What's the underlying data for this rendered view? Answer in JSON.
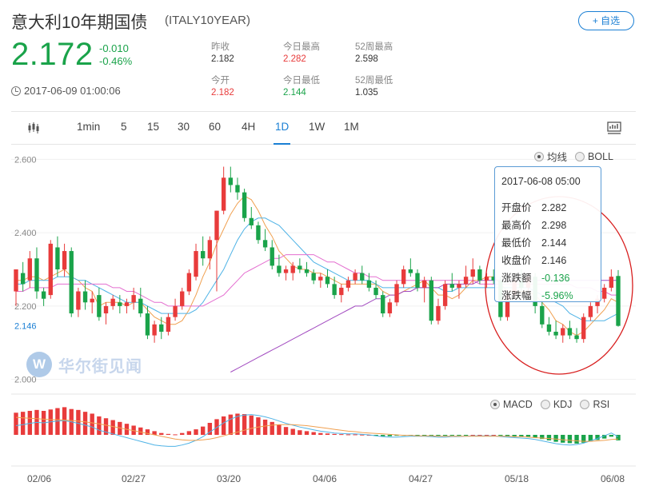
{
  "header": {
    "title": "意大利10年期国债",
    "code": "(ITALY10YEAR)",
    "add_button": "+ 自选",
    "price": "2.172",
    "change": "-0.010",
    "change_pct": "-0.46%",
    "timestamp": "2017-06-09 01:00:06"
  },
  "stats": [
    {
      "label": "昨收",
      "value": "2.182",
      "color": "#333333"
    },
    {
      "label": "今日最高",
      "value": "2.282",
      "color": "#e83b3b"
    },
    {
      "label": "52周最高",
      "value": "2.598",
      "color": "#333333"
    },
    {
      "label": "今开",
      "value": "2.182",
      "color": "#e83b3b"
    },
    {
      "label": "今日最低",
      "value": "2.144",
      "color": "#1aa34a"
    },
    {
      "label": "52周最低",
      "value": "1.035",
      "color": "#333333"
    }
  ],
  "toolbar": {
    "tabs": [
      "1min",
      "5",
      "15",
      "30",
      "60",
      "4H",
      "1D",
      "1W",
      "1M"
    ],
    "active": "1D"
  },
  "overlay_options": {
    "ma_label": "均线",
    "boll_label": "BOLL",
    "selected": "均线"
  },
  "indicator_options": {
    "macd_label": "MACD",
    "kdj_label": "KDJ",
    "rsi_label": "RSI",
    "selected": "MACD"
  },
  "tooltip": {
    "date": "2017-06-08 05:00",
    "open_label": "开盘价",
    "open": "2.282",
    "high_label": "最高价",
    "high": "2.298",
    "low_label": "最低价",
    "low": "2.144",
    "close_label": "收盘价",
    "close": "2.146",
    "change_label": "涨跌额",
    "change": "-0.136",
    "pct_label": "涨跌幅",
    "pct": "-5.96%"
  },
  "watermark": "华尔街见闻",
  "colors": {
    "up": "#e83b3b",
    "down": "#1aa34a",
    "accent": "#1a7fd4",
    "ma5": "#f0a050",
    "ma10": "#4fb3e6",
    "ma20": "#e46fd0",
    "ma60": "#a24bc0"
  },
  "chart_data": {
    "type": "candlestick",
    "x_tick_labels": [
      "02/06",
      "02/27",
      "03/20",
      "04/06",
      "04/27",
      "05/18",
      "06/08"
    ],
    "y_tick_labels": [
      "2.600",
      "2.400",
      "2.200",
      "2.000"
    ],
    "ylim": [
      1.96,
      2.64
    ],
    "last_price_label": "2.146",
    "candles": [
      [
        2.24,
        2.3,
        2.2,
        2.3
      ],
      [
        2.29,
        2.32,
        2.24,
        2.26
      ],
      [
        2.27,
        2.35,
        2.25,
        2.33
      ],
      [
        2.33,
        2.36,
        2.22,
        2.24
      ],
      [
        2.24,
        2.25,
        2.2,
        2.22
      ],
      [
        2.23,
        2.38,
        2.22,
        2.37
      ],
      [
        2.36,
        2.39,
        2.28,
        2.3
      ],
      [
        2.3,
        2.37,
        2.28,
        2.35
      ],
      [
        2.35,
        2.36,
        2.17,
        2.18
      ],
      [
        2.19,
        2.25,
        2.17,
        2.24
      ],
      [
        2.24,
        2.27,
        2.19,
        2.21
      ],
      [
        2.21,
        2.24,
        2.18,
        2.22
      ],
      [
        2.23,
        2.25,
        2.16,
        2.17
      ],
      [
        2.18,
        2.21,
        2.15,
        2.2
      ],
      [
        2.2,
        2.23,
        2.19,
        2.22
      ],
      [
        2.21,
        2.23,
        2.18,
        2.2
      ],
      [
        2.2,
        2.22,
        2.18,
        2.21
      ],
      [
        2.21,
        2.25,
        2.19,
        2.23
      ],
      [
        2.22,
        2.25,
        2.17,
        2.18
      ],
      [
        2.18,
        2.2,
        2.11,
        2.12
      ],
      [
        2.12,
        2.16,
        2.1,
        2.15
      ],
      [
        2.15,
        2.17,
        2.11,
        2.13
      ],
      [
        2.13,
        2.18,
        2.12,
        2.17
      ],
      [
        2.17,
        2.22,
        2.16,
        2.2
      ],
      [
        2.2,
        2.25,
        2.19,
        2.24
      ],
      [
        2.24,
        2.3,
        2.23,
        2.29
      ],
      [
        2.28,
        2.37,
        2.27,
        2.35
      ],
      [
        2.35,
        2.39,
        2.31,
        2.33
      ],
      [
        2.33,
        2.39,
        2.3,
        2.38
      ],
      [
        2.38,
        2.46,
        2.24,
        2.46
      ],
      [
        2.46,
        2.58,
        2.45,
        2.55
      ],
      [
        2.55,
        2.58,
        2.51,
        2.53
      ],
      [
        2.53,
        2.55,
        2.49,
        2.51
      ],
      [
        2.51,
        2.52,
        2.43,
        2.44
      ],
      [
        2.44,
        2.47,
        2.41,
        2.42
      ],
      [
        2.42,
        2.43,
        2.37,
        2.38
      ],
      [
        2.38,
        2.41,
        2.35,
        2.36
      ],
      [
        2.36,
        2.38,
        2.3,
        2.31
      ],
      [
        2.31,
        2.34,
        2.28,
        2.29
      ],
      [
        2.29,
        2.31,
        2.27,
        2.3
      ],
      [
        2.29,
        2.32,
        2.27,
        2.31
      ],
      [
        2.31,
        2.33,
        2.29,
        2.3
      ],
      [
        2.3,
        2.32,
        2.28,
        2.29
      ],
      [
        2.29,
        2.3,
        2.26,
        2.27
      ],
      [
        2.27,
        2.29,
        2.25,
        2.28
      ],
      [
        2.28,
        2.3,
        2.25,
        2.26
      ],
      [
        2.26,
        2.28,
        2.22,
        2.23
      ],
      [
        2.23,
        2.26,
        2.21,
        2.25
      ],
      [
        2.25,
        2.28,
        2.24,
        2.27
      ],
      [
        2.27,
        2.3,
        2.26,
        2.29
      ],
      [
        2.29,
        2.31,
        2.26,
        2.27
      ],
      [
        2.27,
        2.29,
        2.24,
        2.25
      ],
      [
        2.25,
        2.27,
        2.22,
        2.23
      ],
      [
        2.23,
        2.24,
        2.17,
        2.18
      ],
      [
        2.18,
        2.22,
        2.17,
        2.21
      ],
      [
        2.21,
        2.27,
        2.2,
        2.26
      ],
      [
        2.26,
        2.31,
        2.25,
        2.3
      ],
      [
        2.3,
        2.33,
        2.28,
        2.29
      ],
      [
        2.29,
        2.3,
        2.24,
        2.25
      ],
      [
        2.25,
        2.28,
        2.21,
        2.27
      ],
      [
        2.27,
        2.28,
        2.15,
        2.16
      ],
      [
        2.16,
        2.22,
        2.15,
        2.2
      ],
      [
        2.2,
        2.27,
        2.19,
        2.26
      ],
      [
        2.26,
        2.29,
        2.24,
        2.25
      ],
      [
        2.25,
        2.27,
        2.22,
        2.26
      ],
      [
        2.26,
        2.31,
        2.25,
        2.28
      ],
      [
        2.28,
        2.33,
        2.26,
        2.3
      ],
      [
        2.3,
        2.31,
        2.26,
        2.27
      ],
      [
        2.27,
        2.29,
        2.25,
        2.28
      ],
      [
        2.28,
        2.3,
        2.26,
        2.27
      ],
      [
        2.27,
        2.28,
        2.16,
        2.17
      ],
      [
        2.17,
        2.24,
        2.16,
        2.23
      ],
      [
        2.23,
        2.28,
        2.22,
        2.27
      ],
      [
        2.27,
        2.3,
        2.24,
        2.25
      ],
      [
        2.25,
        2.29,
        2.22,
        2.28
      ],
      [
        2.28,
        2.29,
        2.18,
        2.2
      ],
      [
        2.2,
        2.22,
        2.14,
        2.15
      ],
      [
        2.15,
        2.17,
        2.12,
        2.13
      ],
      [
        2.13,
        2.16,
        2.11,
        2.12
      ],
      [
        2.12,
        2.15,
        2.1,
        2.14
      ],
      [
        2.14,
        2.16,
        2.11,
        2.12
      ],
      [
        2.12,
        2.14,
        2.1,
        2.11
      ],
      [
        2.11,
        2.18,
        2.1,
        2.17
      ],
      [
        2.17,
        2.21,
        2.16,
        2.2
      ],
      [
        2.2,
        2.23,
        2.18,
        2.22
      ],
      [
        2.22,
        2.26,
        2.21,
        2.25
      ],
      [
        2.25,
        2.3,
        2.24,
        2.28
      ],
      [
        2.282,
        2.298,
        2.144,
        2.146
      ]
    ],
    "ma_lines": [
      {
        "name": "MA5",
        "values": [
          2.27,
          2.27,
          2.28,
          2.28,
          2.27,
          2.28,
          2.29,
          2.3,
          2.28,
          2.27,
          2.25,
          2.24,
          2.2,
          2.21,
          2.21,
          2.21,
          2.2,
          2.21,
          2.21,
          2.19,
          2.17,
          2.16,
          2.15,
          2.15,
          2.16,
          2.19,
          2.23,
          2.28,
          2.32,
          2.37,
          2.41,
          2.45,
          2.48,
          2.5,
          2.49,
          2.46,
          2.42,
          2.39,
          2.35,
          2.33,
          2.31,
          2.3,
          2.3,
          2.29,
          2.29,
          2.28,
          2.27,
          2.26,
          2.26,
          2.26,
          2.26,
          2.26,
          2.26,
          2.24,
          2.23,
          2.23,
          2.24,
          2.25,
          2.26,
          2.27,
          2.25,
          2.23,
          2.23,
          2.22,
          2.23,
          2.25,
          2.27,
          2.27,
          2.28,
          2.28,
          2.26,
          2.24,
          2.24,
          2.24,
          2.24,
          2.23,
          2.21,
          2.19,
          2.16,
          2.15,
          2.13,
          2.12,
          2.13,
          2.15,
          2.17,
          2.19,
          2.22,
          2.21
        ]
      },
      {
        "name": "MA10",
        "values": [
          2.26,
          2.26,
          2.27,
          2.27,
          2.27,
          2.27,
          2.28,
          2.28,
          2.28,
          2.27,
          2.27,
          2.26,
          2.25,
          2.24,
          2.23,
          2.22,
          2.21,
          2.21,
          2.21,
          2.2,
          2.19,
          2.18,
          2.18,
          2.18,
          2.18,
          2.18,
          2.19,
          2.21,
          2.24,
          2.27,
          2.3,
          2.34,
          2.38,
          2.41,
          2.43,
          2.44,
          2.44,
          2.43,
          2.42,
          2.4,
          2.38,
          2.36,
          2.34,
          2.32,
          2.31,
          2.3,
          2.29,
          2.28,
          2.27,
          2.27,
          2.27,
          2.27,
          2.26,
          2.25,
          2.25,
          2.25,
          2.25,
          2.25,
          2.25,
          2.25,
          2.25,
          2.25,
          2.24,
          2.24,
          2.25,
          2.25,
          2.25,
          2.25,
          2.25,
          2.25,
          2.25,
          2.25,
          2.25,
          2.25,
          2.25,
          2.24,
          2.23,
          2.22,
          2.21,
          2.2,
          2.18,
          2.17,
          2.16,
          2.16,
          2.16,
          2.16,
          2.17,
          2.18
        ]
      },
      {
        "name": "MA20",
        "values": [
          2.24,
          2.24,
          2.25,
          2.25,
          2.25,
          2.25,
          2.26,
          2.26,
          2.26,
          2.26,
          2.26,
          2.26,
          2.26,
          2.26,
          2.25,
          2.25,
          2.24,
          2.24,
          2.23,
          2.22,
          2.21,
          2.21,
          2.2,
          2.2,
          2.2,
          2.2,
          2.2,
          2.2,
          2.21,
          2.22,
          2.23,
          2.25,
          2.27,
          2.29,
          2.3,
          2.31,
          2.32,
          2.33,
          2.33,
          2.34,
          2.34,
          2.34,
          2.34,
          2.34,
          2.33,
          2.32,
          2.32,
          2.31,
          2.3,
          2.29,
          2.29,
          2.28,
          2.28,
          2.27,
          2.27,
          2.27,
          2.27,
          2.27,
          2.27,
          2.27,
          2.27,
          2.27,
          2.27,
          2.27,
          2.27,
          2.27,
          2.27,
          2.26,
          2.26,
          2.26,
          2.26,
          2.26,
          2.26,
          2.26,
          2.26,
          2.26,
          2.26,
          2.26,
          2.26,
          2.26,
          2.26,
          2.25,
          2.25,
          2.25,
          2.24,
          2.24,
          2.23,
          2.23
        ]
      },
      {
        "name": "MA60",
        "values": [
          null,
          null,
          null,
          null,
          null,
          null,
          null,
          null,
          null,
          null,
          null,
          null,
          null,
          null,
          null,
          null,
          null,
          null,
          null,
          null,
          null,
          null,
          null,
          null,
          null,
          null,
          null,
          null,
          null,
          null,
          null,
          2.02,
          2.03,
          2.04,
          2.05,
          2.06,
          2.07,
          2.08,
          2.09,
          2.1,
          2.11,
          2.12,
          2.13,
          2.14,
          2.15,
          2.16,
          2.17,
          2.18,
          2.19,
          2.2,
          2.2,
          2.21,
          2.22,
          2.22,
          2.23,
          2.23,
          2.24,
          2.24,
          2.25,
          2.25,
          2.25,
          2.25,
          2.26,
          2.26,
          2.26,
          2.26,
          2.26,
          2.27,
          2.27,
          2.27,
          2.27,
          2.27,
          2.27,
          2.27,
          2.27,
          2.27,
          2.27,
          2.27,
          2.27,
          2.27,
          2.27,
          2.27,
          2.27,
          2.27,
          2.27,
          2.27,
          2.27,
          2.27
        ]
      }
    ],
    "macd": {
      "histogram": [
        0.048,
        0.05,
        0.052,
        0.054,
        0.052,
        0.055,
        0.058,
        0.06,
        0.056,
        0.054,
        0.05,
        0.046,
        0.04,
        0.036,
        0.032,
        0.028,
        0.024,
        0.02,
        0.016,
        0.012,
        0.008,
        0.004,
        0.002,
        0.001,
        0.004,
        0.008,
        0.012,
        0.018,
        0.026,
        0.034,
        0.04,
        0.044,
        0.046,
        0.045,
        0.042,
        0.038,
        0.033,
        0.028,
        0.022,
        0.017,
        0.013,
        0.01,
        0.008,
        0.006,
        0.004,
        0.003,
        0.002,
        0.0015,
        0.001,
        0.001,
        0.0005,
        0.0,
        -0.002,
        -0.003,
        -0.003,
        -0.002,
        -0.002,
        -0.001,
        -0.001,
        -0.001,
        -0.002,
        -0.002,
        -0.002,
        -0.001,
        -0.001,
        -0.001,
        0.0,
        0.0,
        0.0,
        0.0,
        -0.002,
        -0.003,
        -0.004,
        -0.004,
        -0.004,
        -0.006,
        -0.009,
        -0.012,
        -0.015,
        -0.017,
        -0.018,
        -0.019,
        -0.017,
        -0.014,
        -0.011,
        -0.008,
        -0.004,
        -0.012
      ],
      "dif": [
        0.02,
        0.022,
        0.025,
        0.027,
        0.026,
        0.028,
        0.03,
        0.031,
        0.028,
        0.025,
        0.021,
        0.017,
        0.01,
        0.006,
        0.002,
        -0.002,
        -0.006,
        -0.01,
        -0.014,
        -0.018,
        -0.022,
        -0.024,
        -0.025,
        -0.025,
        -0.022,
        -0.018,
        -0.012,
        -0.004,
        0.006,
        0.016,
        0.026,
        0.034,
        0.04,
        0.043,
        0.044,
        0.042,
        0.039,
        0.035,
        0.03,
        0.025,
        0.021,
        0.017,
        0.014,
        0.011,
        0.008,
        0.006,
        0.004,
        0.003,
        0.002,
        0.002,
        0.001,
        0.0,
        -0.002,
        -0.004,
        -0.005,
        -0.005,
        -0.004,
        -0.003,
        -0.003,
        -0.003,
        -0.004,
        -0.005,
        -0.005,
        -0.004,
        -0.004,
        -0.003,
        -0.002,
        -0.002,
        -0.002,
        -0.002,
        -0.004,
        -0.005,
        -0.006,
        -0.007,
        -0.008,
        -0.01,
        -0.013,
        -0.016,
        -0.019,
        -0.021,
        -0.022,
        -0.021,
        -0.018,
        -0.013,
        -0.008,
        -0.002,
        0.004,
        -0.004
      ],
      "dea": [
        0.038,
        0.037,
        0.036,
        0.035,
        0.034,
        0.033,
        0.033,
        0.032,
        0.031,
        0.03,
        0.028,
        0.026,
        0.024,
        0.021,
        0.018,
        0.015,
        0.012,
        0.009,
        0.006,
        0.003,
        0.0,
        -0.003,
        -0.006,
        -0.009,
        -0.011,
        -0.012,
        -0.012,
        -0.011,
        -0.009,
        -0.006,
        -0.002,
        0.002,
        0.006,
        0.01,
        0.014,
        0.017,
        0.019,
        0.021,
        0.022,
        0.022,
        0.022,
        0.021,
        0.02,
        0.018,
        0.016,
        0.014,
        0.012,
        0.01,
        0.008,
        0.007,
        0.005,
        0.004,
        0.003,
        0.002,
        0.001,
        0.0,
        -0.001,
        -0.001,
        -0.002,
        -0.002,
        -0.002,
        -0.003,
        -0.003,
        -0.003,
        -0.003,
        -0.003,
        -0.003,
        -0.003,
        -0.003,
        -0.003,
        -0.003,
        -0.003,
        -0.004,
        -0.004,
        -0.005,
        -0.006,
        -0.007,
        -0.008,
        -0.009,
        -0.011,
        -0.012,
        -0.013,
        -0.014,
        -0.014,
        -0.013,
        -0.012,
        -0.01,
        -0.009
      ]
    }
  }
}
